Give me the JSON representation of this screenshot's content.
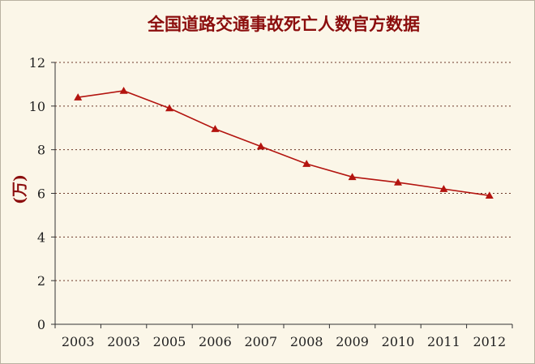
{
  "chart_data": {
    "type": "line",
    "title": "全国道路交通事故死亡人数官方数据",
    "xlabel": "",
    "ylabel": "(万)",
    "categories": [
      "2003",
      "2003",
      "2005",
      "2006",
      "2007",
      "2008",
      "2009",
      "2010",
      "2011",
      "2012"
    ],
    "series": [
      {
        "values": [
          10.4,
          10.7,
          9.9,
          8.95,
          8.15,
          7.35,
          6.75,
          6.5,
          6.2,
          5.9
        ]
      }
    ],
    "ylim": [
      0,
      12
    ],
    "yticks": [
      "0",
      "2",
      "4",
      "6",
      "8",
      "10",
      "12"
    ],
    "grid": true,
    "line_color": "#b3140f"
  }
}
